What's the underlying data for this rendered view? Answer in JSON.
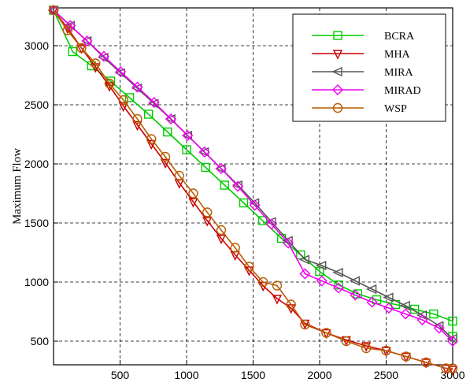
{
  "chart_data": {
    "type": "line",
    "title": "",
    "xlabel": "",
    "ylabel": "Maximum Flow",
    "xlim": [
      0,
      3000
    ],
    "ylim": [
      300,
      3320
    ],
    "x_ticks": [
      500,
      1000,
      1500,
      2000,
      2500,
      3000
    ],
    "y_ticks": [
      500,
      1000,
      1500,
      2000,
      2500,
      3000
    ],
    "grid": true,
    "grid_style": "dashed",
    "legend_position": "top-right",
    "series": [
      {
        "name": "BCRA",
        "color": "#00cc00",
        "marker": "square",
        "points": [
          [
            0,
            3300
          ],
          [
            143,
            2950
          ],
          [
            286,
            2830
          ],
          [
            429,
            2700
          ],
          [
            571,
            2560
          ],
          [
            714,
            2420
          ],
          [
            857,
            2270
          ],
          [
            1000,
            2120
          ],
          [
            1143,
            1970
          ],
          [
            1286,
            1820
          ],
          [
            1429,
            1670
          ],
          [
            1571,
            1520
          ],
          [
            1714,
            1370
          ],
          [
            1857,
            1230
          ],
          [
            2000,
            1090
          ],
          [
            2143,
            975
          ],
          [
            2286,
            900
          ],
          [
            2429,
            850
          ],
          [
            2571,
            810
          ],
          [
            2714,
            770
          ],
          [
            2857,
            730
          ],
          [
            3000,
            670
          ],
          [
            3000,
            540
          ]
        ]
      },
      {
        "name": "MHA",
        "color": "#cc0000",
        "marker": "triangle-down",
        "points": [
          [
            0,
            3300
          ],
          [
            105,
            3150
          ],
          [
            210,
            2980
          ],
          [
            315,
            2820
          ],
          [
            420,
            2660
          ],
          [
            525,
            2490
          ],
          [
            630,
            2330
          ],
          [
            735,
            2170
          ],
          [
            840,
            2010
          ],
          [
            945,
            1840
          ],
          [
            1050,
            1680
          ],
          [
            1155,
            1520
          ],
          [
            1260,
            1370
          ],
          [
            1365,
            1230
          ],
          [
            1470,
            1100
          ],
          [
            1575,
            970
          ],
          [
            1680,
            860
          ],
          [
            1785,
            780
          ],
          [
            1890,
            650
          ],
          [
            2050,
            570
          ],
          [
            2200,
            510
          ],
          [
            2350,
            460
          ],
          [
            2500,
            420
          ],
          [
            2650,
            370
          ],
          [
            2800,
            320
          ],
          [
            2950,
            270
          ],
          [
            3000,
            260
          ]
        ]
      },
      {
        "name": "MIRA",
        "color": "#555555",
        "marker": "triangle-left",
        "points": [
          [
            0,
            3300
          ],
          [
            126,
            3170
          ],
          [
            252,
            3040
          ],
          [
            378,
            2900
          ],
          [
            504,
            2770
          ],
          [
            630,
            2640
          ],
          [
            756,
            2510
          ],
          [
            882,
            2380
          ],
          [
            1008,
            2240
          ],
          [
            1134,
            2100
          ],
          [
            1260,
            1960
          ],
          [
            1386,
            1820
          ],
          [
            1512,
            1670
          ],
          [
            1638,
            1510
          ],
          [
            1764,
            1350
          ],
          [
            1890,
            1190
          ],
          [
            2016,
            1140
          ],
          [
            2142,
            1080
          ],
          [
            2268,
            1010
          ],
          [
            2394,
            940
          ],
          [
            2520,
            870
          ],
          [
            2646,
            800
          ],
          [
            2772,
            720
          ],
          [
            2898,
            630
          ],
          [
            3000,
            520
          ]
        ]
      },
      {
        "name": "MIRAD",
        "color": "#ee00ee",
        "marker": "diamond",
        "points": [
          [
            0,
            3300
          ],
          [
            126,
            3170
          ],
          [
            252,
            3040
          ],
          [
            378,
            2910
          ],
          [
            504,
            2780
          ],
          [
            630,
            2650
          ],
          [
            756,
            2520
          ],
          [
            882,
            2380
          ],
          [
            1008,
            2240
          ],
          [
            1134,
            2100
          ],
          [
            1260,
            1960
          ],
          [
            1386,
            1810
          ],
          [
            1512,
            1650
          ],
          [
            1638,
            1490
          ],
          [
            1764,
            1330
          ],
          [
            1890,
            1070
          ],
          [
            2016,
            1010
          ],
          [
            2142,
            950
          ],
          [
            2268,
            890
          ],
          [
            2394,
            830
          ],
          [
            2520,
            780
          ],
          [
            2646,
            730
          ],
          [
            2772,
            680
          ],
          [
            2898,
            610
          ],
          [
            3000,
            500
          ]
        ]
      },
      {
        "name": "WSP",
        "color": "#b85c00",
        "marker": "circle",
        "points": [
          [
            0,
            3300
          ],
          [
            105,
            3130
          ],
          [
            210,
            2980
          ],
          [
            315,
            2850
          ],
          [
            420,
            2680
          ],
          [
            525,
            2540
          ],
          [
            630,
            2380
          ],
          [
            735,
            2210
          ],
          [
            840,
            2060
          ],
          [
            945,
            1900
          ],
          [
            1050,
            1750
          ],
          [
            1155,
            1590
          ],
          [
            1260,
            1440
          ],
          [
            1365,
            1290
          ],
          [
            1470,
            1130
          ],
          [
            1575,
            1000
          ],
          [
            1680,
            970
          ],
          [
            1785,
            810
          ],
          [
            1890,
            640
          ],
          [
            2050,
            570
          ],
          [
            2200,
            500
          ],
          [
            2350,
            440
          ],
          [
            2500,
            420
          ],
          [
            2650,
            370
          ],
          [
            2800,
            320
          ],
          [
            2950,
            270
          ],
          [
            3000,
            270
          ]
        ]
      }
    ]
  }
}
